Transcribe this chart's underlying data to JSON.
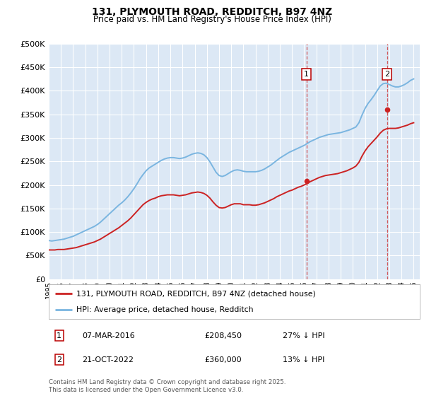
{
  "title": "131, PLYMOUTH ROAD, REDDITCH, B97 4NZ",
  "subtitle": "Price paid vs. HM Land Registry's House Price Index (HPI)",
  "ytick_values": [
    0,
    50000,
    100000,
    150000,
    200000,
    250000,
    300000,
    350000,
    400000,
    450000,
    500000
  ],
  "ylim": [
    0,
    500000
  ],
  "xlim_start": 1995,
  "xlim_end": 2025.5,
  "plot_bg_color": "#dce8f5",
  "grid_color": "#ffffff",
  "hpi_color": "#7ab5e0",
  "price_color": "#cc2222",
  "transaction1_date": "07-MAR-2016",
  "transaction1_price": 208450,
  "transaction1_year": 2016.18,
  "transaction1_label": "1",
  "transaction1_hpi_pct": "27% ↓ HPI",
  "transaction2_date": "21-OCT-2022",
  "transaction2_price": 360000,
  "transaction2_year": 2022.8,
  "transaction2_label": "2",
  "transaction2_hpi_pct": "13% ↓ HPI",
  "legend_line1": "131, PLYMOUTH ROAD, REDDITCH, B97 4NZ (detached house)",
  "legend_line2": "HPI: Average price, detached house, Redditch",
  "footnote": "Contains HM Land Registry data © Crown copyright and database right 2025.\nThis data is licensed under the Open Government Licence v3.0.",
  "hpi_data_x": [
    1995.0,
    1995.25,
    1995.5,
    1995.75,
    1996.0,
    1996.25,
    1996.5,
    1996.75,
    1997.0,
    1997.25,
    1997.5,
    1997.75,
    1998.0,
    1998.25,
    1998.5,
    1998.75,
    1999.0,
    1999.25,
    1999.5,
    1999.75,
    2000.0,
    2000.25,
    2000.5,
    2000.75,
    2001.0,
    2001.25,
    2001.5,
    2001.75,
    2002.0,
    2002.25,
    2002.5,
    2002.75,
    2003.0,
    2003.25,
    2003.5,
    2003.75,
    2004.0,
    2004.25,
    2004.5,
    2004.75,
    2005.0,
    2005.25,
    2005.5,
    2005.75,
    2006.0,
    2006.25,
    2006.5,
    2006.75,
    2007.0,
    2007.25,
    2007.5,
    2007.75,
    2008.0,
    2008.25,
    2008.5,
    2008.75,
    2009.0,
    2009.25,
    2009.5,
    2009.75,
    2010.0,
    2010.25,
    2010.5,
    2010.75,
    2011.0,
    2011.25,
    2011.5,
    2011.75,
    2012.0,
    2012.25,
    2012.5,
    2012.75,
    2013.0,
    2013.25,
    2013.5,
    2013.75,
    2014.0,
    2014.25,
    2014.5,
    2014.75,
    2015.0,
    2015.25,
    2015.5,
    2015.75,
    2016.0,
    2016.25,
    2016.5,
    2016.75,
    2017.0,
    2017.25,
    2017.5,
    2017.75,
    2018.0,
    2018.25,
    2018.5,
    2018.75,
    2019.0,
    2019.25,
    2019.5,
    2019.75,
    2020.0,
    2020.25,
    2020.5,
    2020.75,
    2021.0,
    2021.25,
    2021.5,
    2021.75,
    2022.0,
    2022.25,
    2022.5,
    2022.75,
    2023.0,
    2023.25,
    2023.5,
    2023.75,
    2024.0,
    2024.25,
    2024.5,
    2024.75,
    2025.0
  ],
  "hpi_data_y": [
    82000,
    81000,
    82000,
    83000,
    84000,
    85000,
    87000,
    89000,
    91000,
    94000,
    97000,
    100000,
    103000,
    106000,
    109000,
    112000,
    116000,
    121000,
    127000,
    133000,
    139000,
    145000,
    151000,
    157000,
    162000,
    168000,
    175000,
    183000,
    192000,
    202000,
    213000,
    222000,
    230000,
    236000,
    240000,
    244000,
    248000,
    252000,
    255000,
    257000,
    258000,
    258000,
    257000,
    256000,
    257000,
    259000,
    262000,
    265000,
    267000,
    268000,
    267000,
    264000,
    258000,
    249000,
    238000,
    227000,
    220000,
    218000,
    220000,
    224000,
    228000,
    231000,
    232000,
    231000,
    229000,
    228000,
    228000,
    228000,
    228000,
    229000,
    231000,
    234000,
    238000,
    242000,
    247000,
    252000,
    257000,
    261000,
    265000,
    269000,
    272000,
    275000,
    278000,
    281000,
    284000,
    288000,
    292000,
    295000,
    298000,
    301000,
    303000,
    305000,
    307000,
    308000,
    309000,
    310000,
    311000,
    313000,
    315000,
    317000,
    320000,
    323000,
    332000,
    348000,
    362000,
    373000,
    381000,
    390000,
    400000,
    410000,
    415000,
    416000,
    413000,
    410000,
    408000,
    408000,
    410000,
    413000,
    417000,
    422000,
    425000
  ],
  "price_data_x": [
    1995.0,
    1995.25,
    1995.5,
    1995.75,
    1996.0,
    1996.25,
    1996.5,
    1996.75,
    1997.0,
    1997.25,
    1997.5,
    1997.75,
    1998.0,
    1998.25,
    1998.5,
    1998.75,
    1999.0,
    1999.25,
    1999.5,
    1999.75,
    2000.0,
    2000.25,
    2000.5,
    2000.75,
    2001.0,
    2001.25,
    2001.5,
    2001.75,
    2002.0,
    2002.25,
    2002.5,
    2002.75,
    2003.0,
    2003.25,
    2003.5,
    2003.75,
    2004.0,
    2004.25,
    2004.5,
    2004.75,
    2005.0,
    2005.25,
    2005.5,
    2005.75,
    2006.0,
    2006.25,
    2006.5,
    2006.75,
    2007.0,
    2007.25,
    2007.5,
    2007.75,
    2008.0,
    2008.25,
    2008.5,
    2008.75,
    2009.0,
    2009.25,
    2009.5,
    2009.75,
    2010.0,
    2010.25,
    2010.5,
    2010.75,
    2011.0,
    2011.25,
    2011.5,
    2011.75,
    2012.0,
    2012.25,
    2012.5,
    2012.75,
    2013.0,
    2013.25,
    2013.5,
    2013.75,
    2014.0,
    2014.25,
    2014.5,
    2014.75,
    2015.0,
    2015.25,
    2015.5,
    2015.75,
    2016.0,
    2016.25,
    2016.5,
    2016.75,
    2017.0,
    2017.25,
    2017.5,
    2017.75,
    2018.0,
    2018.25,
    2018.5,
    2018.75,
    2019.0,
    2019.25,
    2019.5,
    2019.75,
    2020.0,
    2020.25,
    2020.5,
    2020.75,
    2021.0,
    2021.25,
    2021.5,
    2021.75,
    2022.0,
    2022.25,
    2022.5,
    2022.75,
    2023.0,
    2023.25,
    2023.5,
    2023.75,
    2024.0,
    2024.25,
    2024.5,
    2024.75,
    2025.0
  ],
  "price_data_y": [
    62000,
    62000,
    62000,
    63000,
    63000,
    63000,
    64000,
    65000,
    66000,
    67000,
    69000,
    71000,
    73000,
    75000,
    77000,
    79000,
    82000,
    85000,
    89000,
    93000,
    97000,
    101000,
    105000,
    109000,
    114000,
    119000,
    124000,
    130000,
    137000,
    144000,
    151000,
    158000,
    163000,
    167000,
    170000,
    172000,
    175000,
    177000,
    178000,
    179000,
    179000,
    179000,
    178000,
    177000,
    178000,
    179000,
    181000,
    183000,
    184000,
    185000,
    184000,
    182000,
    178000,
    172000,
    164000,
    157000,
    152000,
    151000,
    152000,
    155000,
    158000,
    160000,
    160000,
    160000,
    158000,
    158000,
    158000,
    157000,
    157000,
    158000,
    160000,
    162000,
    165000,
    168000,
    171000,
    175000,
    178000,
    181000,
    184000,
    187000,
    189000,
    192000,
    195000,
    197000,
    200000,
    203000,
    207000,
    210000,
    213000,
    216000,
    218000,
    220000,
    221000,
    222000,
    223000,
    224000,
    226000,
    228000,
    230000,
    233000,
    236000,
    240000,
    248000,
    261000,
    272000,
    281000,
    288000,
    295000,
    302000,
    310000,
    316000,
    319000,
    320000,
    320000,
    320000,
    321000,
    323000,
    325000,
    327000,
    330000,
    332000
  ]
}
